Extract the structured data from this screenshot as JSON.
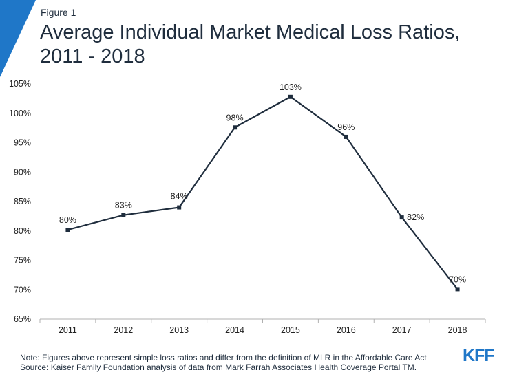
{
  "header": {
    "figure_label": "Figure 1",
    "title": "Average Individual Market Medical Loss Ratios, 2011 - 2018"
  },
  "notes": {
    "note": "Note: Figures above represent simple loss ratios and differ from the definition of MLR in the Affordable Care Act",
    "source": "Source: Kaiser Family Foundation analysis of data from Mark Farrah Associates Health Coverage Portal TM."
  },
  "logo": {
    "text": "KFF"
  },
  "colors": {
    "accent": "#1f77c8",
    "line": "#1f2d3d",
    "axis": "#b0b0b0"
  },
  "chart_data": {
    "type": "line",
    "title": "Average Individual Market Medical Loss Ratios, 2011 - 2018",
    "xlabel": "",
    "ylabel": "",
    "x": [
      "2011",
      "2012",
      "2013",
      "2014",
      "2015",
      "2016",
      "2017",
      "2018"
    ],
    "values": [
      80.2,
      82.7,
      84.0,
      97.6,
      102.8,
      96.0,
      82.3,
      70.1
    ],
    "data_labels": [
      "80%",
      "83%",
      "84%",
      "98%",
      "103%",
      "96%",
      "82%",
      "70%"
    ],
    "ylim": [
      65,
      105
    ],
    "yticks": [
      "65%",
      "70%",
      "75%",
      "80%",
      "85%",
      "90%",
      "95%",
      "100%",
      "105%"
    ],
    "grid": false,
    "legend": "none"
  }
}
